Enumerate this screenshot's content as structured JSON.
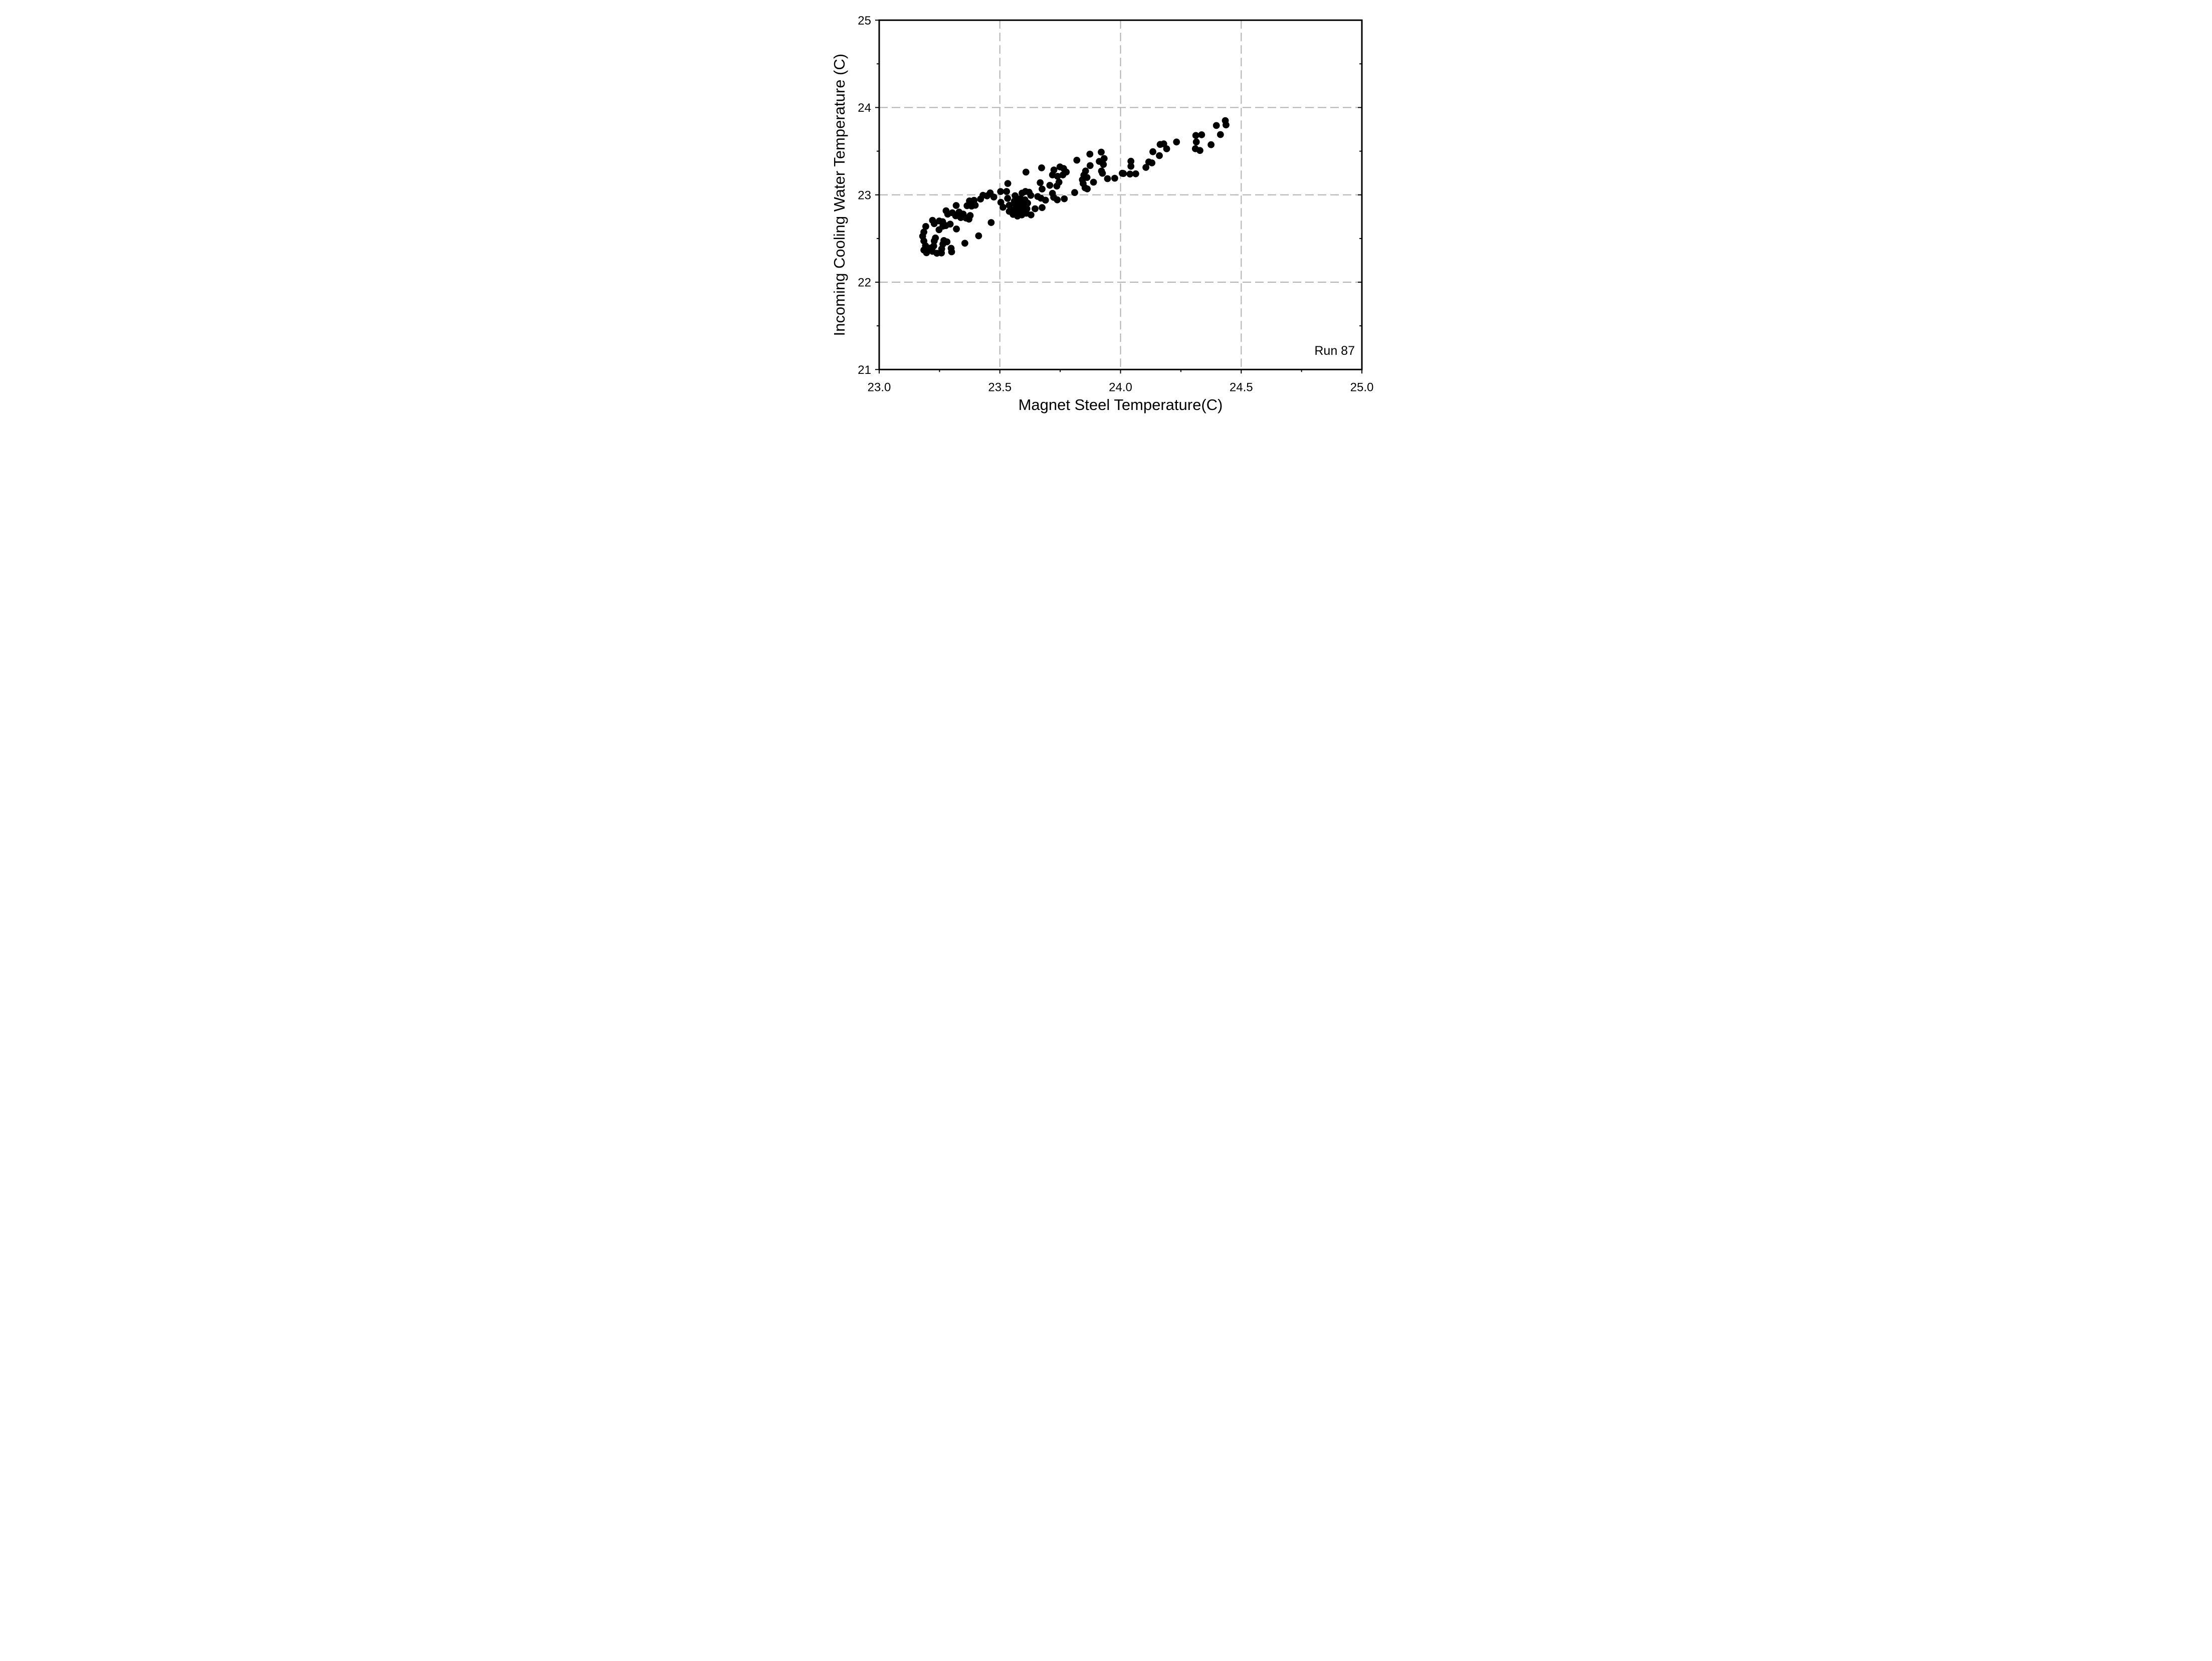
{
  "chart_data": {
    "type": "scatter",
    "title": "",
    "xlabel": "Magnet Steel Temperature(C)",
    "ylabel": "Incoming Cooling Water Temperature (C)",
    "annotation": "Run 87",
    "xlim": [
      23.0,
      25.0
    ],
    "ylim": [
      21.0,
      25.0
    ],
    "x_major_ticks": [
      23.0,
      23.5,
      24.0,
      24.5,
      25.0
    ],
    "x_tick_labels": [
      "23.0",
      "23.5",
      "24.0",
      "24.5",
      "25.0"
    ],
    "x_minor_ticks": [
      23.25,
      23.75,
      24.25,
      24.75
    ],
    "y_major_ticks": [
      21,
      22,
      23,
      24,
      25
    ],
    "y_tick_labels": [
      "21",
      "22",
      "23",
      "24",
      "25"
    ],
    "y_minor_ticks": [
      21.5,
      22.5,
      23.5,
      24.5
    ],
    "grid": "major gridlines only, dashed, under data",
    "legend_position": "none",
    "marker": "filled circle",
    "marker_color": "#000000",
    "grid_color": "#b0b0b0",
    "axis_color": "#000000",
    "background_color": "#ffffff",
    "points": [
      [
        23.18,
        22.526
      ],
      [
        23.185,
        22.574
      ],
      [
        23.193,
        22.638
      ],
      [
        23.185,
        22.472
      ],
      [
        23.192,
        22.417
      ],
      [
        23.185,
        22.368
      ],
      [
        23.196,
        22.337
      ],
      [
        23.212,
        22.391
      ],
      [
        23.226,
        22.414
      ],
      [
        23.228,
        22.472
      ],
      [
        23.233,
        22.506
      ],
      [
        23.221,
        22.353
      ],
      [
        23.239,
        22.331
      ],
      [
        23.258,
        22.334
      ],
      [
        23.259,
        22.381
      ],
      [
        23.264,
        22.436
      ],
      [
        23.268,
        22.477
      ],
      [
        23.281,
        22.462
      ],
      [
        23.298,
        22.388
      ],
      [
        23.3,
        22.347
      ],
      [
        23.355,
        22.446
      ],
      [
        23.412,
        22.531
      ],
      [
        23.464,
        22.683
      ],
      [
        23.248,
        22.6
      ],
      [
        23.221,
        22.708
      ],
      [
        23.228,
        22.67
      ],
      [
        23.249,
        22.701
      ],
      [
        23.263,
        22.692
      ],
      [
        23.264,
        22.641
      ],
      [
        23.276,
        22.648
      ],
      [
        23.294,
        22.665
      ],
      [
        23.32,
        22.609
      ],
      [
        23.277,
        22.818
      ],
      [
        23.284,
        22.779
      ],
      [
        23.303,
        22.795
      ],
      [
        23.317,
        22.76
      ],
      [
        23.331,
        22.803
      ],
      [
        23.338,
        22.74
      ],
      [
        23.348,
        22.78
      ],
      [
        23.36,
        22.734
      ],
      [
        23.372,
        22.722
      ],
      [
        23.377,
        22.763
      ],
      [
        23.319,
        22.878
      ],
      [
        23.364,
        22.875
      ],
      [
        23.383,
        22.871
      ],
      [
        23.374,
        22.93
      ],
      [
        23.393,
        22.938
      ],
      [
        23.398,
        22.881
      ],
      [
        23.42,
        22.952
      ],
      [
        23.43,
        22.995
      ],
      [
        23.447,
        22.988
      ],
      [
        23.46,
        23.022
      ],
      [
        23.475,
        22.975
      ],
      [
        23.503,
        23.038
      ],
      [
        23.528,
        23.039
      ],
      [
        23.533,
        23.13
      ],
      [
        23.504,
        22.914
      ],
      [
        23.513,
        22.858
      ],
      [
        23.532,
        22.959
      ],
      [
        23.539,
        22.881
      ],
      [
        23.539,
        22.811
      ],
      [
        23.564,
        22.795
      ],
      [
        23.58,
        22.844
      ],
      [
        23.563,
        22.99
      ],
      [
        23.572,
        22.94
      ],
      [
        23.56,
        22.928
      ],
      [
        23.585,
        22.956
      ],
      [
        23.588,
        22.917
      ],
      [
        23.604,
        22.943
      ],
      [
        23.566,
        22.885
      ],
      [
        23.581,
        22.859
      ],
      [
        23.597,
        22.879
      ],
      [
        23.615,
        22.905
      ],
      [
        23.558,
        22.828
      ],
      [
        23.576,
        22.809
      ],
      [
        23.594,
        22.822
      ],
      [
        23.612,
        22.841
      ],
      [
        23.555,
        22.776
      ],
      [
        23.573,
        22.757
      ],
      [
        23.591,
        22.77
      ],
      [
        23.61,
        22.789
      ],
      [
        23.629,
        22.77
      ],
      [
        23.646,
        22.841
      ],
      [
        23.675,
        22.854
      ],
      [
        23.592,
        23.02
      ],
      [
        23.606,
        23.039
      ],
      [
        23.621,
        23.03
      ],
      [
        23.628,
        22.994
      ],
      [
        23.657,
        22.981
      ],
      [
        23.67,
        22.962
      ],
      [
        23.689,
        22.939
      ],
      [
        23.718,
        23.017
      ],
      [
        23.723,
        22.971
      ],
      [
        23.738,
        22.943
      ],
      [
        23.767,
        22.955
      ],
      [
        23.81,
        23.026
      ],
      [
        23.667,
        23.139
      ],
      [
        23.675,
        23.067
      ],
      [
        23.707,
        23.109
      ],
      [
        23.736,
        23.1
      ],
      [
        23.745,
        23.145
      ],
      [
        23.608,
        23.26
      ],
      [
        23.673,
        23.309
      ],
      [
        23.724,
        23.285
      ],
      [
        23.749,
        23.32
      ],
      [
        23.764,
        23.302
      ],
      [
        23.718,
        23.228
      ],
      [
        23.739,
        23.212
      ],
      [
        23.761,
        23.228
      ],
      [
        23.775,
        23.261
      ],
      [
        23.819,
        23.397
      ],
      [
        23.845,
        23.13
      ],
      [
        23.853,
        23.08
      ],
      [
        23.862,
        23.068
      ],
      [
        23.842,
        23.173
      ],
      [
        23.848,
        23.225
      ],
      [
        23.861,
        23.199
      ],
      [
        23.888,
        23.145
      ],
      [
        23.873,
        23.466
      ],
      [
        23.92,
        23.489
      ],
      [
        23.932,
        23.416
      ],
      [
        23.912,
        23.383
      ],
      [
        23.929,
        23.348
      ],
      [
        23.874,
        23.335
      ],
      [
        23.855,
        23.273
      ],
      [
        23.921,
        23.273
      ],
      [
        23.925,
        23.247
      ],
      [
        23.946,
        23.185
      ],
      [
        23.976,
        23.19
      ],
      [
        24.007,
        23.247
      ],
      [
        24.012,
        23.244
      ],
      [
        24.039,
        23.238
      ],
      [
        24.063,
        23.241
      ],
      [
        24.043,
        23.385
      ],
      [
        24.043,
        23.327
      ],
      [
        24.105,
        23.314
      ],
      [
        24.117,
        23.376
      ],
      [
        24.13,
        23.366
      ],
      [
        24.134,
        23.494
      ],
      [
        24.161,
        23.449
      ],
      [
        24.164,
        23.577
      ],
      [
        24.179,
        23.584
      ],
      [
        24.191,
        23.527
      ],
      [
        24.232,
        23.605
      ],
      [
        24.312,
        23.68
      ],
      [
        24.336,
        23.688
      ],
      [
        24.314,
        23.606
      ],
      [
        24.31,
        23.528
      ],
      [
        24.329,
        23.508
      ],
      [
        24.375,
        23.574
      ],
      [
        24.397,
        23.794
      ],
      [
        24.414,
        23.69
      ],
      [
        24.434,
        23.85
      ],
      [
        24.437,
        23.801
      ]
    ]
  }
}
